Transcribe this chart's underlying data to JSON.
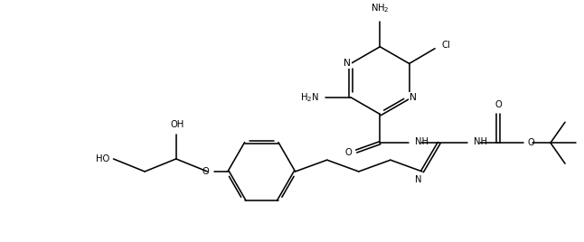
{
  "figsize": [
    6.46,
    2.68
  ],
  "dpi": 100,
  "bg": "#ffffff",
  "lc": "#000000",
  "lw": 1.15,
  "fs": 7.2,
  "xlim": [
    0,
    6.46
  ],
  "ylim": [
    0,
    2.68
  ]
}
